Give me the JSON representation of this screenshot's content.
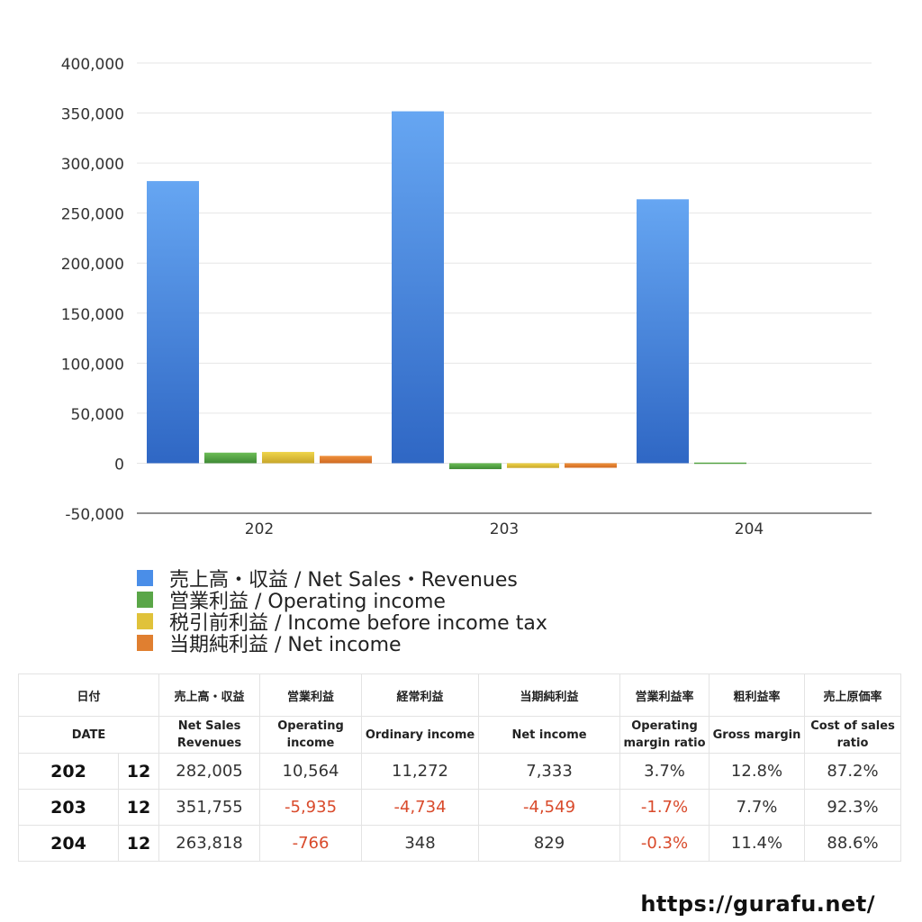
{
  "chart_data": {
    "type": "bar",
    "categories": [
      "202",
      "203",
      "204"
    ],
    "ylim": [
      -50000,
      400000
    ],
    "yticks": [
      400000,
      350000,
      300000,
      250000,
      200000,
      150000,
      100000,
      50000,
      0,
      -50000
    ],
    "ytick_labels": [
      "400,000",
      "350,000",
      "300,000",
      "250,000",
      "200,000",
      "150,000",
      "100,000",
      "50,000",
      "0",
      "-50,000"
    ],
    "grid": true,
    "legend_position": "bottom-left",
    "series": [
      {
        "name": "売上高・収益 / Net Sales・Revenues",
        "color": "#4a8ee8",
        "values": [
          282005,
          351755,
          263818
        ]
      },
      {
        "name": "営業利益 / Operating income",
        "color": "#5aa648",
        "values": [
          10564,
          -5935,
          -766
        ]
      },
      {
        "name": "税引前利益 / Income before income tax",
        "color": "#e0c23a",
        "values": [
          11272,
          -4734,
          null
        ]
      },
      {
        "name": "当期純利益 / Net income",
        "color": "#e07f30",
        "values": [
          7333,
          -4549,
          null
        ]
      }
    ]
  },
  "table": {
    "headers_jp": [
      "日付",
      "売上高・収益",
      "営業利益",
      "経常利益",
      "当期純利益",
      "営業利益率",
      "粗利益率",
      "売上原価率"
    ],
    "headers_en": [
      [
        "DATE"
      ],
      [
        "Net Sales",
        "Revenues"
      ],
      [
        "Operating",
        "income"
      ],
      [
        "Ordinary income"
      ],
      [
        "Net income"
      ],
      [
        "Operating",
        "margin ratio"
      ],
      [
        "Gross margin"
      ],
      [
        "Cost of sales",
        "ratio"
      ]
    ],
    "rows": [
      {
        "date": "202",
        "month": "12",
        "values": [
          "282,005",
          "10,564",
          "11,272",
          "7,333",
          "3.7%",
          "12.8%",
          "87.2%"
        ]
      },
      {
        "date": "203",
        "month": "12",
        "values": [
          "351,755",
          "-5,935",
          "-4,734",
          "-4,549",
          "-1.7%",
          "7.7%",
          "92.3%"
        ]
      },
      {
        "date": "204",
        "month": "12",
        "values": [
          "263,818",
          "-766",
          "348",
          "829",
          "-0.3%",
          "11.4%",
          "88.6%"
        ]
      }
    ]
  },
  "source_url": "https://gurafu.net/"
}
